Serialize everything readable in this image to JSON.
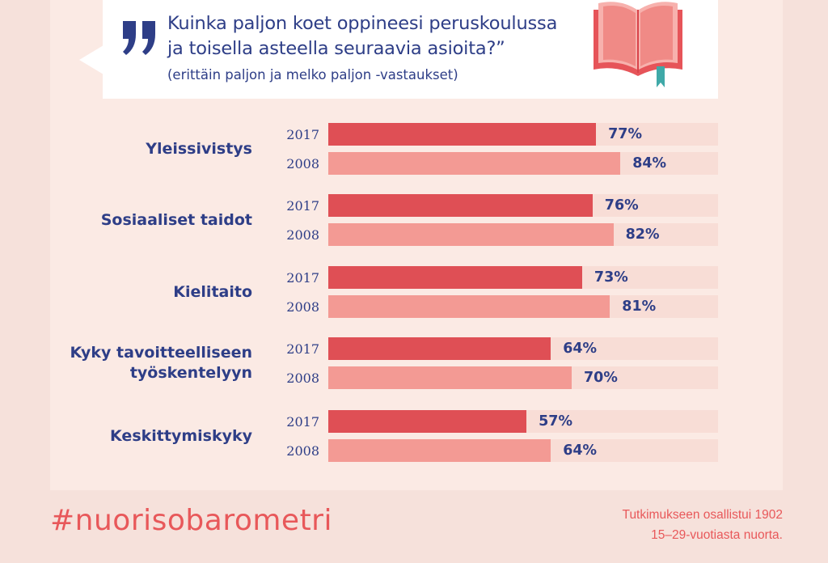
{
  "header": {
    "question_line1": "Kuinka paljon koet oppineesi peruskoulussa",
    "question_line2": "ja toisella asteella seuraavia asioita?”",
    "subtitle": "(erittäin paljon ja melko paljon -vastaukset)",
    "quote_icon": "quote-marks-icon",
    "book_icon": "open-book-icon"
  },
  "chart_data": {
    "type": "bar",
    "orientation": "horizontal",
    "categories": [
      "Yleissivistys",
      "Sosiaaliset taidot",
      "Kielitaito",
      "Kyky tavoitteelliseen työskentelyyn",
      "Keskittymiskyky"
    ],
    "category_lines": [
      [
        "Yleissivistys"
      ],
      [
        "Sosiaaliset taidot"
      ],
      [
        "Kielitaito"
      ],
      [
        "Kyky tavoitteelliseen",
        "työskentelyyn"
      ],
      [
        "Keskittymiskyky"
      ]
    ],
    "series": [
      {
        "name": "2017",
        "color": "#df4f55",
        "values": [
          77,
          76,
          73,
          64,
          57
        ]
      },
      {
        "name": "2008",
        "color": "#f39a94",
        "values": [
          84,
          82,
          81,
          70,
          64
        ]
      }
    ],
    "value_suffix": "%",
    "xlim": [
      0,
      100
    ],
    "grid": false
  },
  "footer": {
    "hashtag": "#nuorisobarometri",
    "note_line1": "Tutkimukseen osallistui 1902",
    "note_line2": "15–29-vuotiasta nuorta."
  },
  "colors": {
    "background": "#f6e1db",
    "panel": "#fbeae4",
    "text": "#2e3e87",
    "accent": "#e8585a",
    "bar_2017": "#df4f55",
    "bar_2008": "#f39a94",
    "track": "#f8ddd6"
  }
}
